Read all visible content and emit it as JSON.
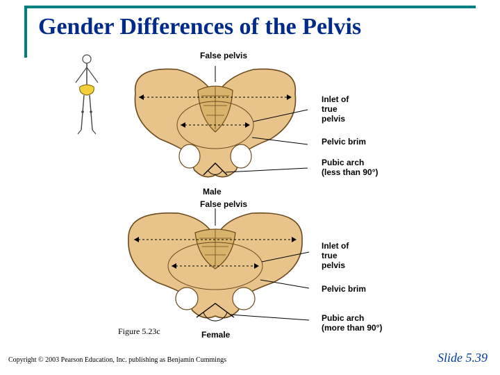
{
  "title": "Gender Differences of the Pelvis",
  "accent_color": "#008080",
  "title_color": "#002b8a",
  "slide_number_color": "#003c9e",
  "bone_fill": "#e9c48a",
  "bone_stroke": "#6b4a1e",
  "skeleton_highlight": "#f3cf3a",
  "labels": {
    "false_pelvis": "False pelvis",
    "inlet": "Inlet of\ntrue\npelvis",
    "pelvic_brim": "Pelvic brim",
    "pubic_arch_male": "Pubic arch\n(less than 90°)",
    "pubic_arch_female": "Pubic arch\n(more than 90°)",
    "male": "Male",
    "female": "Female"
  },
  "figure_ref": "Figure 5.23c",
  "copyright": "Copyright © 2003 Pearson Education, Inc. publishing as Benjamin Cummings",
  "slide_number": "Slide 5.39"
}
